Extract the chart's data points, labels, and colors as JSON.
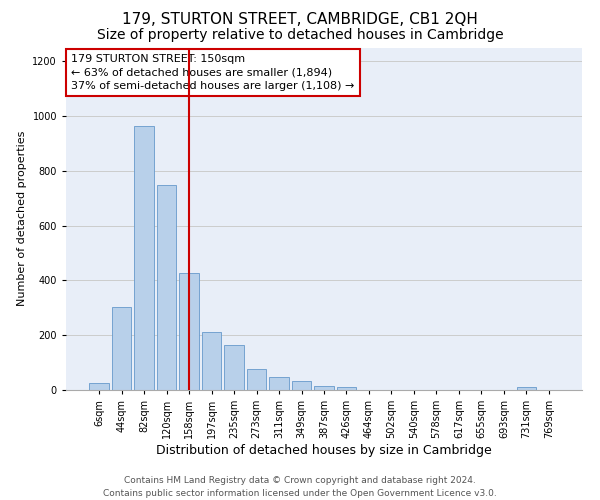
{
  "title": "179, STURTON STREET, CAMBRIDGE, CB1 2QH",
  "subtitle": "Size of property relative to detached houses in Cambridge",
  "xlabel": "Distribution of detached houses by size in Cambridge",
  "ylabel": "Number of detached properties",
  "categories": [
    "6sqm",
    "44sqm",
    "82sqm",
    "120sqm",
    "158sqm",
    "197sqm",
    "235sqm",
    "273sqm",
    "311sqm",
    "349sqm",
    "387sqm",
    "426sqm",
    "464sqm",
    "502sqm",
    "540sqm",
    "578sqm",
    "617sqm",
    "655sqm",
    "693sqm",
    "731sqm",
    "769sqm"
  ],
  "values": [
    25,
    302,
    963,
    748,
    428,
    210,
    165,
    75,
    48,
    32,
    15,
    10,
    0,
    0,
    0,
    0,
    0,
    0,
    0,
    12,
    0
  ],
  "bar_color": "#b8d0ea",
  "bar_edge_color": "#6699cc",
  "vline_color": "#cc0000",
  "vline_x_index": 4,
  "annotation_text": "179 STURTON STREET: 150sqm\n← 63% of detached houses are smaller (1,894)\n37% of semi-detached houses are larger (1,108) →",
  "annotation_box_color": "#ffffff",
  "annotation_box_edge_color": "#cc0000",
  "ylim": [
    0,
    1250
  ],
  "yticks": [
    0,
    200,
    400,
    600,
    800,
    1000,
    1200
  ],
  "footer_line1": "Contains HM Land Registry data © Crown copyright and database right 2024.",
  "footer_line2": "Contains public sector information licensed under the Open Government Licence v3.0.",
  "title_fontsize": 11,
  "subtitle_fontsize": 10,
  "xlabel_fontsize": 9,
  "ylabel_fontsize": 8,
  "tick_fontsize": 7,
  "annotation_fontsize": 8,
  "footer_fontsize": 6.5,
  "bg_color": "#e8eef8"
}
